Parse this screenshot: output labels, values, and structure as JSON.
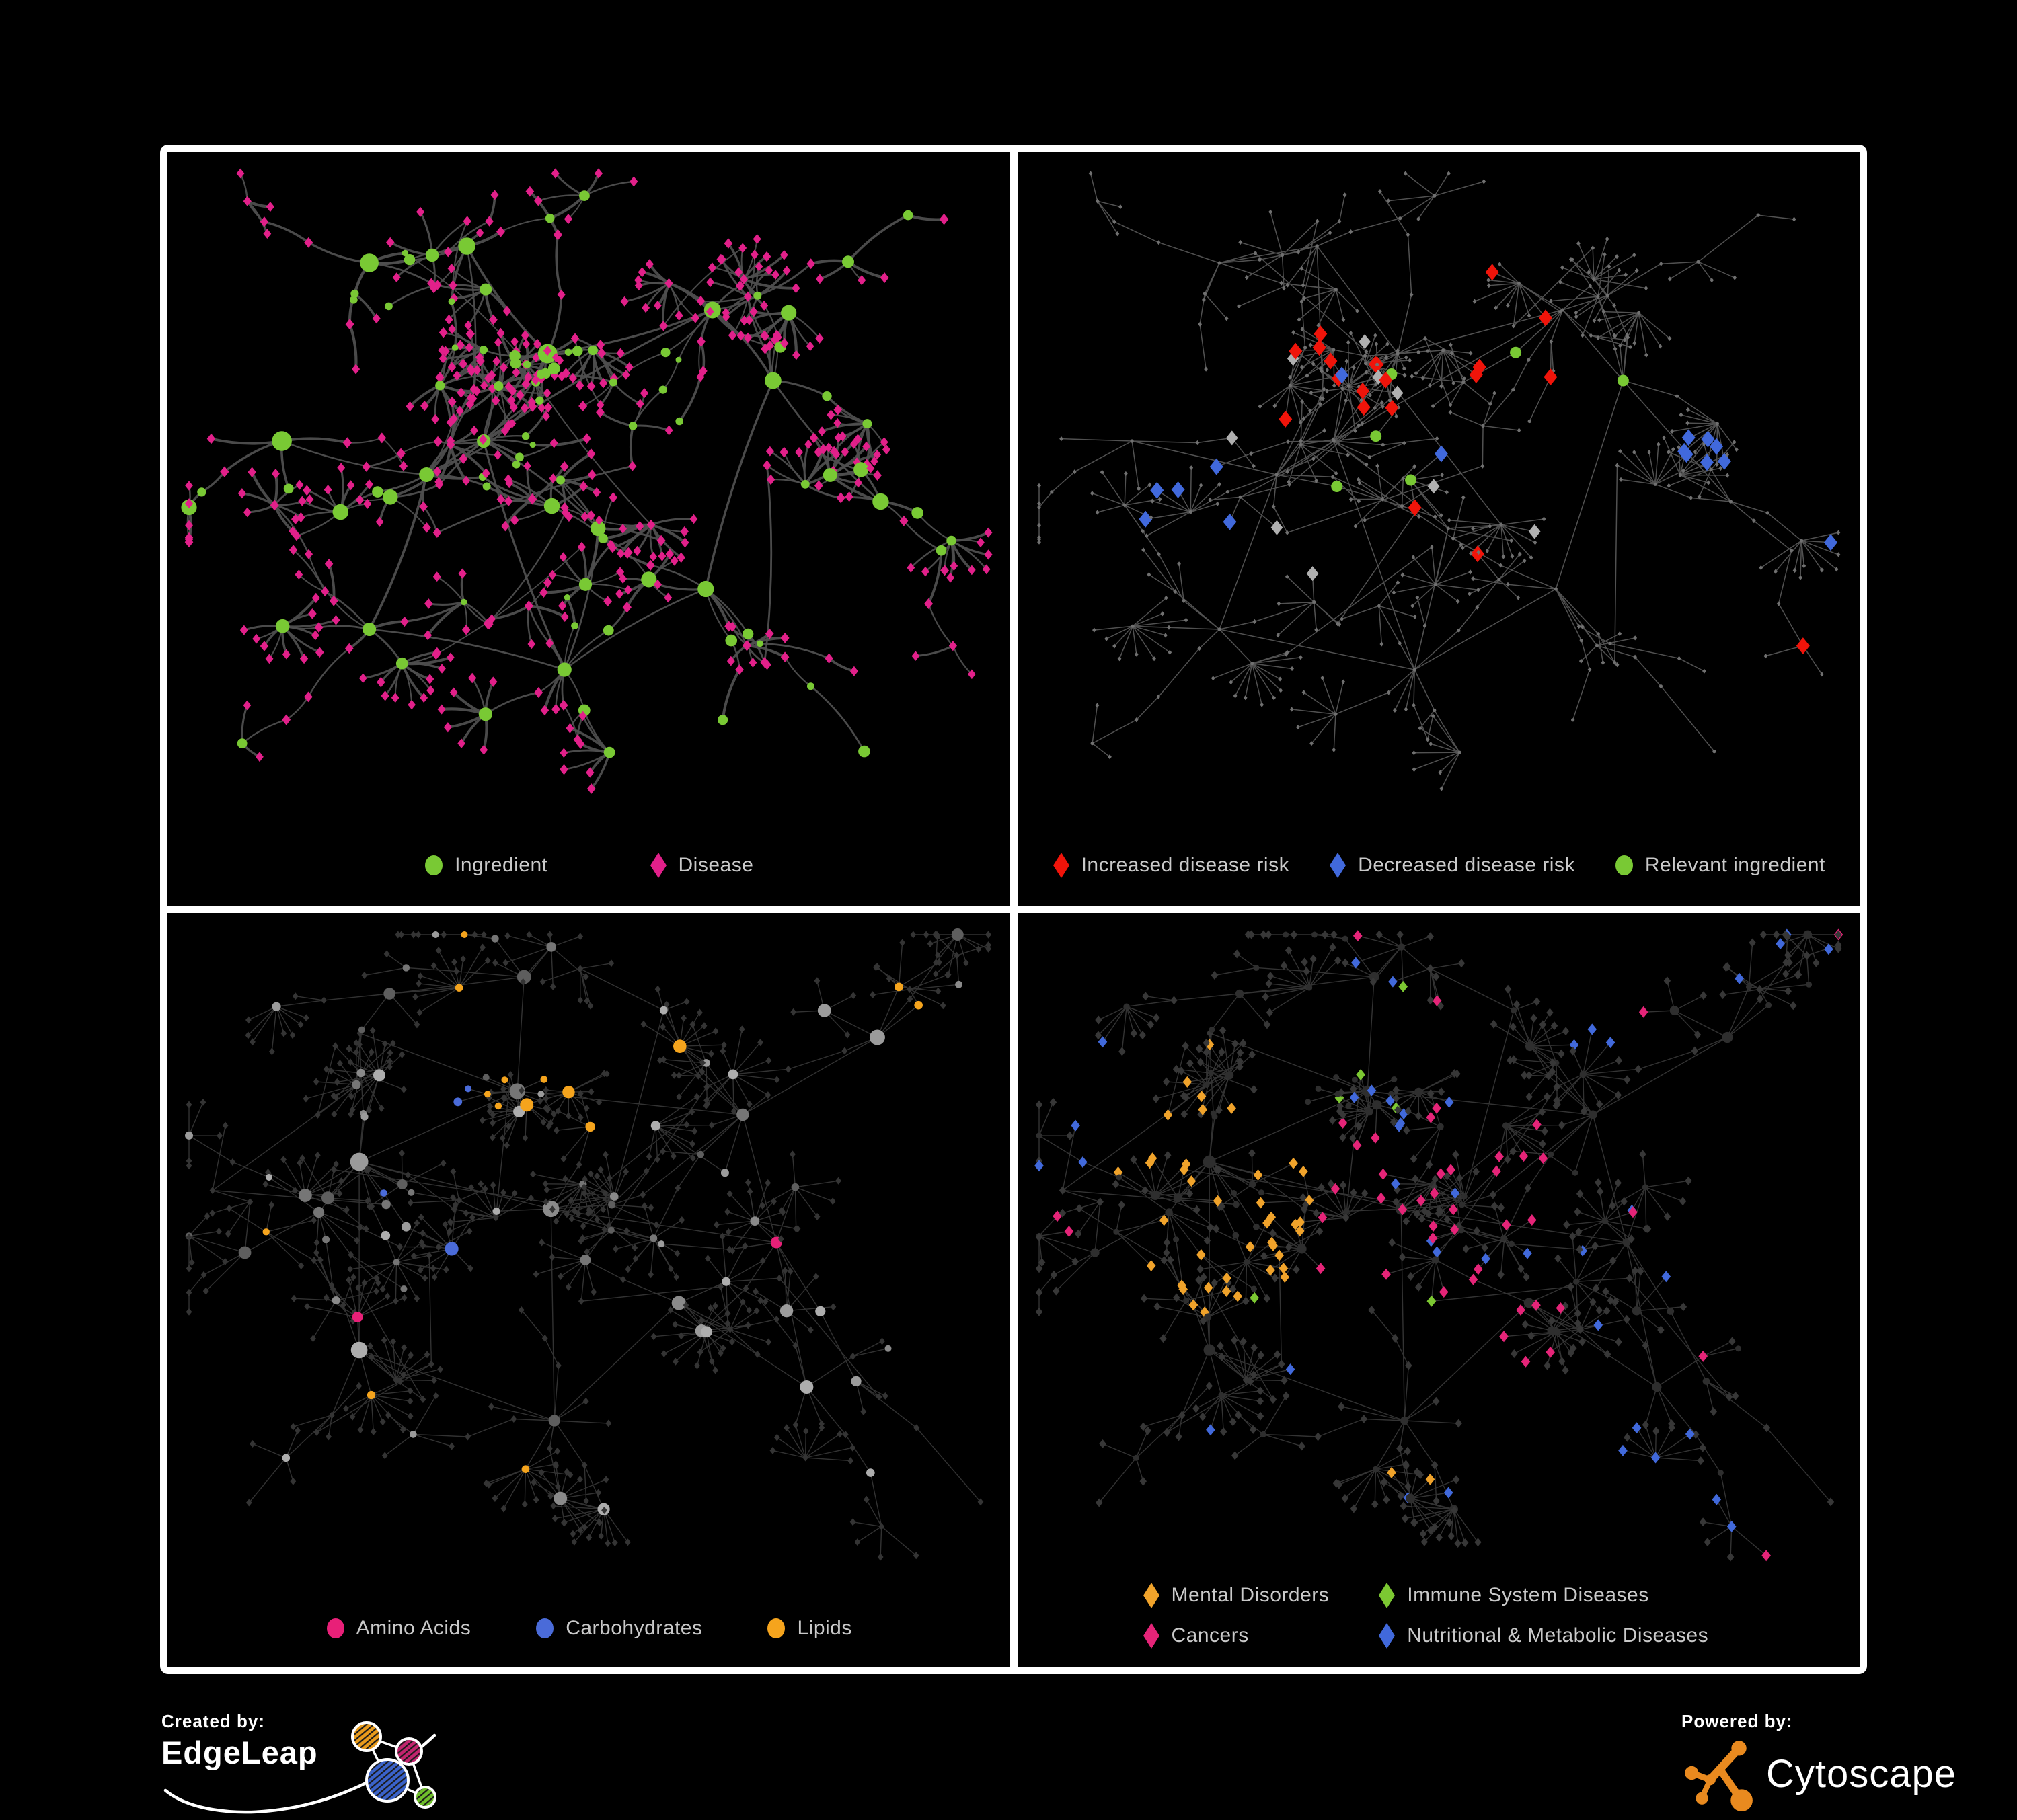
{
  "poster": {
    "background": "#000000",
    "frame_color": "#FFFFFF",
    "legend_text_color": "#C9C9C9"
  },
  "panels": [
    {
      "name": "ingredient-disease",
      "legend": [
        {
          "shape": "circle",
          "color": "#79C934",
          "label": "Ingredient"
        },
        {
          "shape": "diamond",
          "color": "#E2208A",
          "label": "Disease"
        }
      ]
    },
    {
      "name": "disease-risk",
      "legend": [
        {
          "shape": "diamond",
          "color": "#F0140A",
          "label": "Increased disease risk"
        },
        {
          "shape": "diamond",
          "color": "#4169DC",
          "label": "Decreased disease risk"
        },
        {
          "shape": "circle",
          "color": "#79C934",
          "label": "Relevant ingredient"
        }
      ]
    },
    {
      "name": "nutrient-classes",
      "legend": [
        {
          "shape": "circle",
          "color": "#E82078",
          "label": "Amino Acids"
        },
        {
          "shape": "circle",
          "color": "#4A6BD9",
          "label": "Carbohydrates"
        },
        {
          "shape": "circle",
          "color": "#F5A41D",
          "label": "Lipids"
        }
      ]
    },
    {
      "name": "disease-classes",
      "legend": [
        {
          "shape": "diamond",
          "color": "#F0A32B",
          "label": "Mental Disorders"
        },
        {
          "shape": "diamond",
          "color": "#E52478",
          "label": "Cancers"
        },
        {
          "shape": "diamond",
          "color": "#7CC832",
          "label": "Immune System Diseases"
        },
        {
          "shape": "diamond",
          "color": "#4169DB",
          "label": "Nutritional & Metabolic Diseases"
        }
      ]
    }
  ],
  "footer": {
    "created_by": {
      "label": "Created by:",
      "brand": "EdgeLeap"
    },
    "powered_by": {
      "label": "Powered by:",
      "brand": "Cytoscape",
      "accent": "#E98A1F"
    }
  },
  "network": {
    "styles": {
      "p1": {
        "edge": "#4E4E4E",
        "edge_opacity": 0.95,
        "ingredient": "#79C934",
        "disease": "#E2208A"
      },
      "p2": {
        "edge": "#5F5F5F",
        "edge_opacity": 0.85,
        "base": "#707070",
        "red": "#F0140A",
        "blue": "#4169DC",
        "gray": "#B0B0B0",
        "green": "#79C934"
      },
      "p3": {
        "edge": "#4D4D4D",
        "edge_opacity": 0.65,
        "disease": "#343434",
        "ingredient_grays": [
          "#9B9B9B",
          "#8A8A8A",
          "#ADADAD",
          "#767676",
          "#5E5E5E"
        ],
        "amino": "#E82078",
        "carb": "#4A6BD9",
        "lipid": "#F5A41D"
      },
      "p4": {
        "edge": "#555555",
        "edge_opacity": 0.6,
        "ingredient": "#2E2E2E",
        "disease": "#373737",
        "mental": "#F0A32B",
        "cancer": "#E52478",
        "immune": "#7CC832",
        "nutr": "#4169DB"
      }
    },
    "layouts": {
      "A": {
        "seed": 1337,
        "assign_seed": 2024,
        "extra": 14,
        "clusters": [
          [
            470,
            430,
            9,
            0
          ],
          [
            385,
            480,
            8,
            0
          ],
          [
            565,
            300,
            10,
            1
          ],
          [
            300,
            165,
            5,
            0
          ],
          [
            445,
            140,
            4,
            0
          ],
          [
            810,
            235,
            6,
            0
          ],
          [
            900,
            340,
            5,
            0
          ],
          [
            1060,
            520,
            4,
            0
          ],
          [
            590,
            770,
            8,
            0
          ],
          [
            300,
            710,
            5,
            0
          ],
          [
            170,
            430,
            4,
            0
          ],
          [
            800,
            650,
            5,
            0
          ],
          [
            640,
            560,
            4,
            0
          ]
        ],
        "links": [
          [
            0,
            1
          ],
          [
            0,
            2
          ],
          [
            1,
            10
          ],
          [
            0,
            8
          ],
          [
            2,
            4
          ],
          [
            2,
            5
          ],
          [
            5,
            6
          ],
          [
            6,
            7
          ],
          [
            8,
            11
          ],
          [
            8,
            9
          ],
          [
            1,
            9
          ],
          [
            3,
            4
          ],
          [
            0,
            5
          ],
          [
            12,
            0
          ],
          [
            12,
            8
          ],
          [
            6,
            11
          ]
        ],
        "chains": [
          [
            5,
            1160,
            85,
            5
          ],
          [
            7,
            1190,
            720,
            4
          ],
          [
            9,
            130,
            900,
            4
          ],
          [
            3,
            95,
            95,
            3
          ],
          [
            11,
            1010,
            870,
            4
          ],
          [
            2,
            560,
            60,
            3
          ]
        ]
      },
      "B": {
        "seed": 777,
        "assign_seed": 4242,
        "extra": 16,
        "clusters": [
          [
            285,
            370,
            10,
            2
          ],
          [
            225,
            445,
            7,
            0
          ],
          [
            520,
            265,
            9,
            1
          ],
          [
            330,
            120,
            4,
            0
          ],
          [
            530,
            95,
            4,
            0
          ],
          [
            570,
            440,
            6,
            0
          ],
          [
            575,
            755,
            8,
            0
          ],
          [
            285,
            650,
            5,
            0
          ],
          [
            855,
            300,
            5,
            0
          ],
          [
            1055,
            185,
            4,
            0
          ],
          [
            905,
            490,
            5,
            0
          ],
          [
            950,
            705,
            5,
            0
          ],
          [
            115,
            505,
            3,
            0
          ],
          [
            760,
            580,
            4,
            0
          ]
        ],
        "links": [
          [
            0,
            1
          ],
          [
            0,
            2
          ],
          [
            0,
            5
          ],
          [
            1,
            12
          ],
          [
            2,
            4
          ],
          [
            3,
            4
          ],
          [
            2,
            8
          ],
          [
            8,
            9
          ],
          [
            5,
            6
          ],
          [
            6,
            7
          ],
          [
            0,
            7
          ],
          [
            8,
            10
          ],
          [
            10,
            11
          ],
          [
            6,
            13
          ],
          [
            13,
            11
          ],
          [
            5,
            10
          ]
        ],
        "chains": [
          [
            9,
            1190,
            75,
            4
          ],
          [
            10,
            1180,
            890,
            4
          ],
          [
            7,
            130,
            905,
            3
          ],
          [
            8,
            640,
            70,
            3
          ],
          [
            12,
            60,
            330,
            3
          ]
        ]
      }
    }
  }
}
